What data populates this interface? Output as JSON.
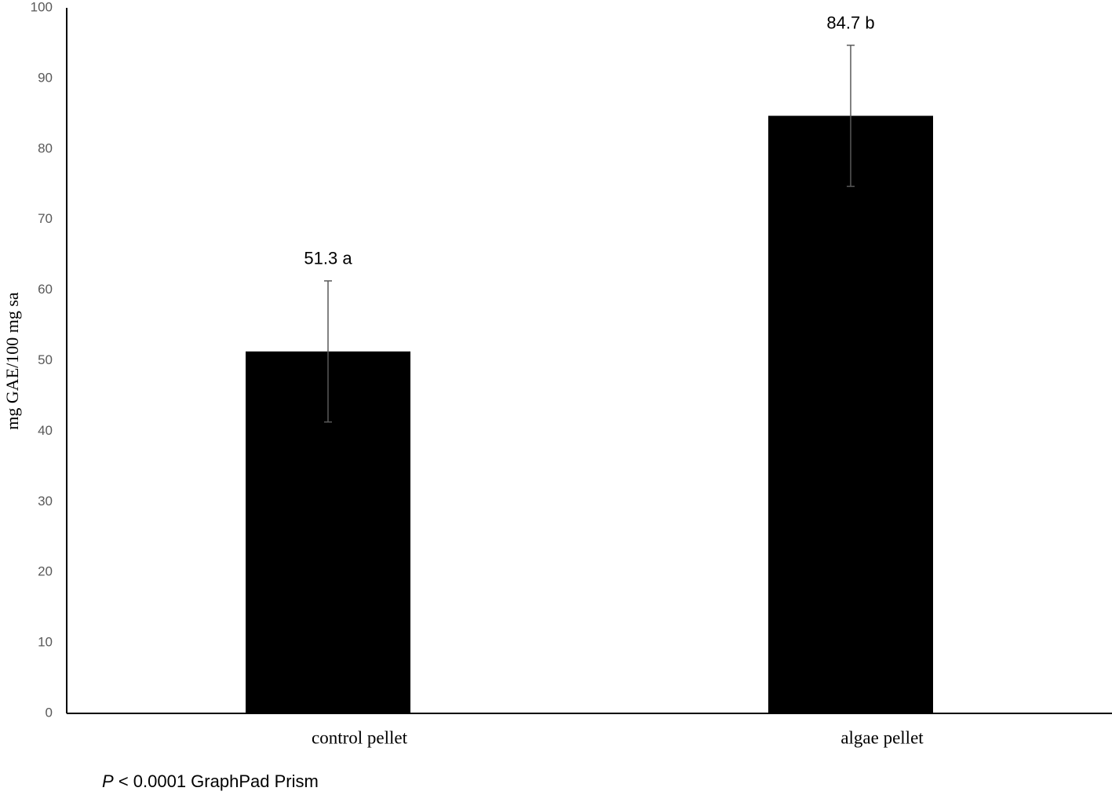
{
  "chart_data": {
    "type": "bar",
    "y_label": "mg GAE/100 mg  sa",
    "categories": [
      "control pellet",
      "algae pellet"
    ],
    "values": [
      51.3,
      84.7
    ],
    "value_labels": [
      "51.3 a",
      "84.7 b"
    ],
    "errors": [
      10,
      10
    ],
    "color": "#000000",
    "error_color": "#595959",
    "ylim": [
      0,
      100
    ],
    "yticks": [
      0,
      10,
      20,
      30,
      40,
      50,
      60,
      70,
      80,
      90,
      100
    ],
    "grid": false,
    "annotation": [
      "P",
      "< 0.0001 GraphPad Prism"
    ]
  }
}
